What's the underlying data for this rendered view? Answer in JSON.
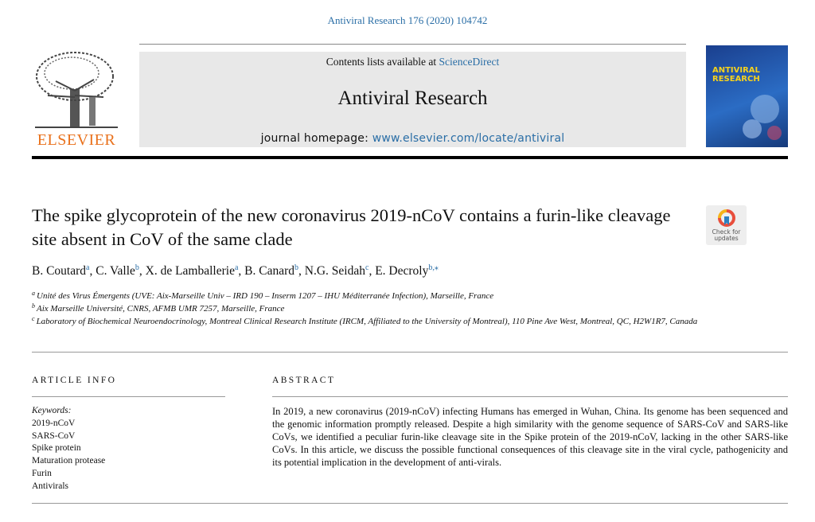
{
  "header": {
    "citation": "Antiviral Research 176 (2020) 104742",
    "publisher": "ELSEVIER",
    "contents_prefix": "Contents lists available at ",
    "contents_link": "ScienceDirect",
    "journal": "Antiviral Research",
    "homepage_prefix": "journal homepage: ",
    "homepage_link": "www.elsevier.com/locate/antiviral",
    "cover_title": "ANTIVIRAL RESEARCH"
  },
  "article": {
    "title": "The spike glycoprotein of the new coronavirus 2019-nCoV contains a furin-like cleavage site absent in CoV of the same clade",
    "check_updates": "Check for updates",
    "authors": [
      {
        "name": "B. Coutard",
        "sup": "a"
      },
      {
        "name": "C. Valle",
        "sup": "b"
      },
      {
        "name": "X. de Lamballerie",
        "sup": "a"
      },
      {
        "name": "B. Canard",
        "sup": "b"
      },
      {
        "name": "N.G. Seidah",
        "sup": "c"
      },
      {
        "name": "E. Decroly",
        "sup": "b,⁎"
      }
    ],
    "affiliations": [
      {
        "sup": "a",
        "text": "Unité des Virus Émergents (UVE: Aix-Marseille Univ – IRD 190 – Inserm 1207 – IHU Méditerranée Infection), Marseille, France"
      },
      {
        "sup": "b",
        "text": "Aix Marseille Université, CNRS, AFMB UMR 7257, Marseille, France"
      },
      {
        "sup": "c",
        "text": "Laboratory of Biochemical Neuroendocrinology, Montreal Clinical Research Institute (IRCM, Affiliated to the University of Montreal), 110 Pine Ave West, Montreal, QC, H2W1R7, Canada"
      }
    ]
  },
  "info": {
    "heading": "ARTICLE INFO",
    "keywords_label": "Keywords:",
    "keywords": [
      "2019-nCoV",
      "SARS-CoV",
      "Spike protein",
      "Maturation protease",
      "Furin",
      "Antivirals"
    ]
  },
  "abstract": {
    "heading": "ABSTRACT",
    "text": "In 2019, a new coronavirus (2019-nCoV) infecting Humans has emerged in Wuhan, China. Its genome has been sequenced and the genomic information promptly released. Despite a high similarity with the genome sequence of SARS-CoV and SARS-like CoVs, we identified a peculiar furin-like cleavage site in the Spike protein of the 2019-nCoV, lacking in the other SARS-like CoVs. In this article, we discuss the possible functional consequences of this cleavage site in the viral cycle, pathogenicity and its potential implication in the development of anti-virals."
  }
}
